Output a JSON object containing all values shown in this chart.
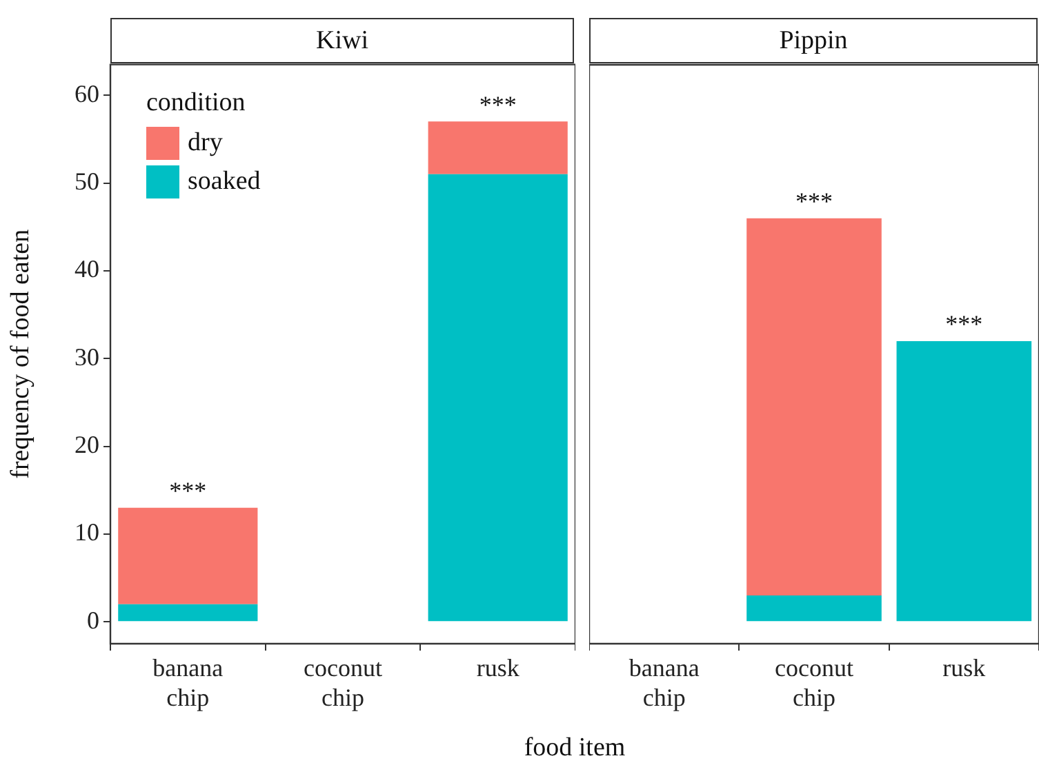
{
  "chart_data": [
    {
      "type": "bar",
      "title": "Kiwi",
      "ylabel": "frequency of food eaten",
      "xlabel": "food item",
      "legend_title": "condition",
      "legend": "top left",
      "stacked": true,
      "grid": false,
      "categories": [
        "banana chip",
        "coconut chip",
        "rusk"
      ],
      "series": [
        {
          "name": "soaked",
          "color": "#00bfc4",
          "values": [
            2,
            0,
            51
          ]
        },
        {
          "name": "dry",
          "color": "#f8766d",
          "values": [
            11,
            0,
            6
          ]
        }
      ],
      "ylim": [
        -2.5,
        63.5
      ],
      "yticks": [
        0,
        10,
        20,
        30,
        40,
        50,
        60
      ],
      "annotations": [
        {
          "text": "***",
          "x": "banana chip",
          "y": 13
        },
        {
          "text": "***",
          "x": "rusk",
          "y": 57
        }
      ]
    },
    {
      "type": "bar",
      "title": "Pippin",
      "stacked": true,
      "grid": false,
      "tick_labels": "x",
      "categories": [
        "banana chip",
        "coconut chip",
        "rusk"
      ],
      "series": [
        {
          "color": "#00bfc4",
          "values": [
            0,
            3,
            32
          ]
        },
        {
          "color": "#f8766d",
          "values": [
            0,
            43,
            0
          ]
        }
      ],
      "ylim": [
        -2.5,
        63.5
      ],
      "yticks": [
        0,
        10,
        20,
        30,
        40,
        50,
        60
      ],
      "annotations": [
        {
          "text": "***",
          "x": "coconut chip",
          "y": 46
        },
        {
          "text": "***",
          "x": "rusk",
          "y": 32
        }
      ]
    }
  ]
}
